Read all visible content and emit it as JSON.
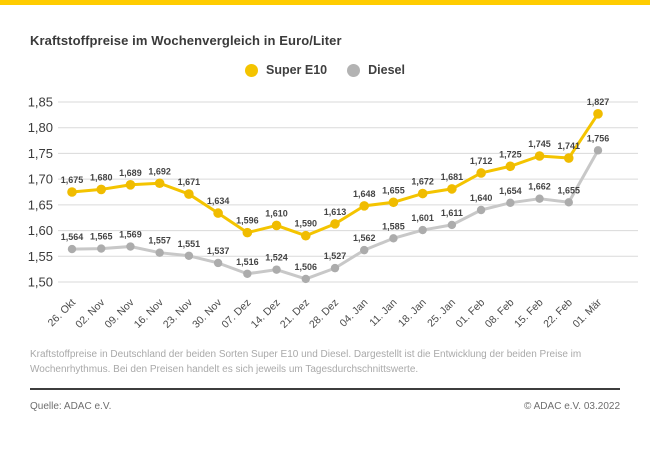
{
  "page": {
    "accent_color": "#ffcc00",
    "background": "#ffffff"
  },
  "header": {
    "title": "Kraftstoffpreise im Wochenvergleich in Euro/Liter"
  },
  "legend": {
    "items": [
      {
        "label": "Super E10",
        "color": "#f4c400"
      },
      {
        "label": "Diesel",
        "color": "#b3b3b3"
      }
    ]
  },
  "chart_data": {
    "type": "line",
    "title": "Kraftstoffpreise im Wochenvergleich in Euro/Liter",
    "xlabel": "",
    "ylabel": "Euro/Liter",
    "ylim": [
      1.5,
      1.85
    ],
    "grid": true,
    "legend_position": "top-center",
    "y_ticks": [
      {
        "label": "1,85",
        "value": 1.85
      },
      {
        "label": "1,80",
        "value": 1.8
      },
      {
        "label": "1,75",
        "value": 1.75
      },
      {
        "label": "1,70",
        "value": 1.7
      },
      {
        "label": "1,65",
        "value": 1.65
      },
      {
        "label": "1,60",
        "value": 1.6
      },
      {
        "label": "1,55",
        "value": 1.55
      },
      {
        "label": "1,50",
        "value": 1.5
      }
    ],
    "categories": [
      "26. Okt",
      "02. Nov",
      "09. Nov",
      "16. Nov",
      "23. Nov",
      "30. Nov",
      "07. Dez",
      "14. Dez",
      "21. Dez",
      "28. Dez",
      "04. Jan",
      "11. Jan",
      "18. Jan",
      "25. Jan",
      "01. Feb",
      "08. Feb",
      "15. Feb",
      "22. Feb",
      "01. Mär"
    ],
    "series": [
      {
        "name": "Super E10",
        "line_color": "#f4c400",
        "marker_color": "#f0bc00",
        "marker_radius": 4.8,
        "values": [
          1.675,
          1.68,
          1.689,
          1.692,
          1.671,
          1.634,
          1.596,
          1.61,
          1.59,
          1.613,
          1.648,
          1.655,
          1.672,
          1.681,
          1.712,
          1.725,
          1.745,
          1.741,
          1.827
        ],
        "labels": [
          "1,675",
          "1,680",
          "1,689",
          "1,692",
          "1,671",
          "1,634",
          "1,596",
          "1,610",
          "1,590",
          "1,613",
          "1,648",
          "1,655",
          "1,672",
          "1,681",
          "1,712",
          "1,725",
          "1,745",
          "1,741",
          "1,827"
        ]
      },
      {
        "name": "Diesel",
        "line_color": "#c8c8c8",
        "marker_color": "#acacac",
        "marker_radius": 4.2,
        "values": [
          1.564,
          1.565,
          1.569,
          1.557,
          1.551,
          1.537,
          1.516,
          1.524,
          1.506,
          1.527,
          1.562,
          1.585,
          1.601,
          1.611,
          1.64,
          1.654,
          1.662,
          1.655,
          1.756
        ],
        "labels": [
          "1,564",
          "1,565",
          "1,569",
          "1,557",
          "1,551",
          "1,537",
          "1,516",
          "1,524",
          "1,506",
          "1,527",
          "1,562",
          "1,585",
          "1,601",
          "1,611",
          "1,640",
          "1,654",
          "1,662",
          "1,655",
          "1,756"
        ]
      }
    ],
    "style": {
      "gridline_color": "#dadada",
      "y_tick_color": "#3c3c3c",
      "x_tick_color": "#4a4a4a",
      "data_label_color": "#454545"
    }
  },
  "footer": {
    "description": "Kraftstoffpreise in Deutschland der beiden Sorten Super E10 und Diesel. Dargestellt ist die Entwicklung der beiden Preise im Wochenrhythmus. Bei den Preisen handelt es sich jeweils um Tagesdurchschnittswerte.",
    "source": "Quelle: ADAC e.V.",
    "copyright": "© ADAC e.V. 03.2022"
  }
}
